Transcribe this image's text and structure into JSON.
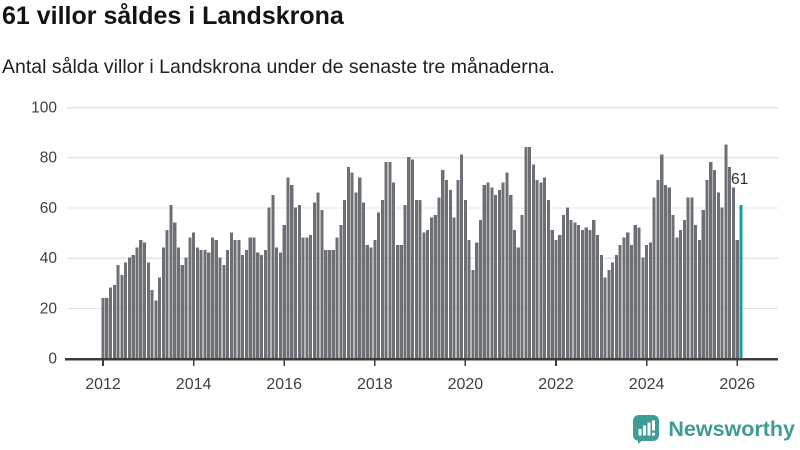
{
  "header": {
    "title": "61 villor såldes i Landskrona",
    "subtitle": "Antal sålda villor i Landskrona under de senaste tre månaderna."
  },
  "chart_data": {
    "type": "bar",
    "title": "61 villor såldes i Landskrona",
    "subtitle": "Antal sålda villor i Landskrona under de senaste tre månaderna.",
    "x_unit": "month",
    "x_start": "2012-01",
    "x_end": "2026-02",
    "x_tick_labels": [
      "2012",
      "2014",
      "2016",
      "2018",
      "2020",
      "2022",
      "2024",
      "2026"
    ],
    "y_ticks": [
      0,
      20,
      40,
      60,
      80,
      100
    ],
    "ylim": [
      0,
      100
    ],
    "grid": true,
    "values": [
      24,
      24,
      28,
      29,
      37,
      33,
      38,
      40,
      41,
      44,
      47,
      46,
      38,
      27,
      23,
      32,
      44,
      51,
      61,
      54,
      44,
      37,
      40,
      48,
      50,
      44,
      43,
      43,
      42,
      48,
      47,
      40,
      37,
      43,
      50,
      47,
      47,
      41,
      43,
      48,
      48,
      42,
      41,
      43,
      60,
      65,
      44,
      42,
      53,
      72,
      69,
      60,
      61,
      48,
      48,
      49,
      62,
      66,
      59,
      43,
      43,
      43,
      48,
      53,
      63,
      76,
      74,
      66,
      72,
      62,
      45,
      44,
      47,
      58,
      63,
      78,
      78,
      70,
      45,
      45,
      61,
      80,
      79,
      63,
      63,
      50,
      51,
      56,
      57,
      64,
      75,
      71,
      67,
      56,
      71,
      81,
      63,
      47,
      35,
      46,
      55,
      69,
      70,
      68,
      65,
      67,
      70,
      74,
      65,
      51,
      44,
      57,
      84,
      84,
      77,
      71,
      70,
      72,
      63,
      51,
      47,
      49,
      57,
      60,
      55,
      54,
      53,
      51,
      52,
      51,
      55,
      49,
      41,
      32,
      35,
      38,
      41,
      45,
      48,
      50,
      45,
      53,
      52,
      40,
      45,
      46,
      64,
      71,
      81,
      69,
      68,
      57,
      48,
      51,
      55,
      64,
      64,
      53,
      47,
      59,
      71,
      78,
      75,
      66,
      60,
      85,
      76,
      68,
      47,
      61
    ],
    "highlight_last": true,
    "annotation": {
      "text": "61",
      "value": 61
    },
    "colors": {
      "bar": "#6c6f73",
      "highlight": "#16a0a0",
      "grid": "#e3e3e3",
      "axis": "#3b3b3b",
      "tick_label": "#3f3f3f"
    }
  },
  "footer": {
    "brand": "Newsworthy",
    "brand_color": "#3e9b95",
    "logo_icon": "bar-chart-speech-bubble-icon"
  }
}
